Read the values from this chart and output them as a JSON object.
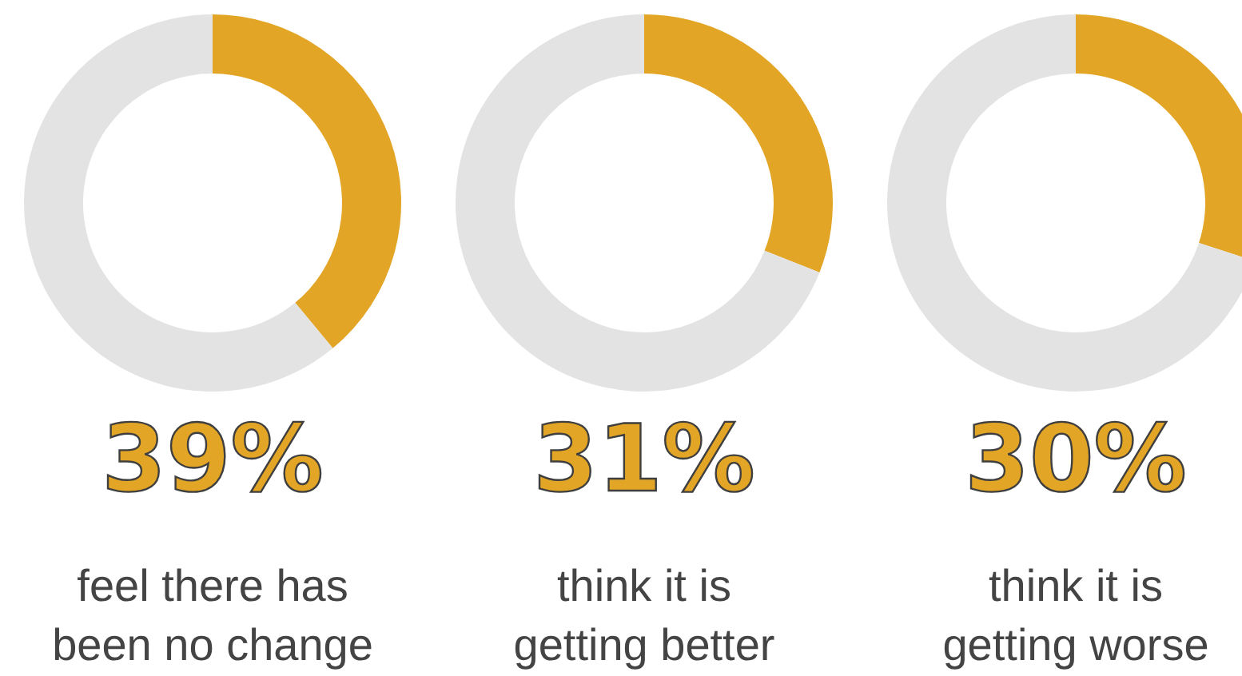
{
  "chart_data": [
    {
      "type": "donut",
      "categories": [
        null,
        null
      ],
      "values": [
        39,
        61
      ],
      "colors": [
        "#e2a526",
        "#e3e3e3"
      ],
      "annotations": [
        "39%",
        "feel there has been no change"
      ]
    },
    {
      "type": "donut",
      "categories": [
        null,
        null
      ],
      "values": [
        31,
        69
      ],
      "colors": [
        "#e2a526",
        "#e3e3e3"
      ],
      "annotations": [
        "31%",
        "think it is getting better"
      ]
    },
    {
      "type": "donut",
      "categories": [
        null,
        null
      ],
      "values": [
        30,
        70
      ],
      "colors": [
        "#e2a526",
        "#e3e3e3"
      ],
      "annotations": [
        "30%",
        "think it is getting worse"
      ]
    }
  ]
}
